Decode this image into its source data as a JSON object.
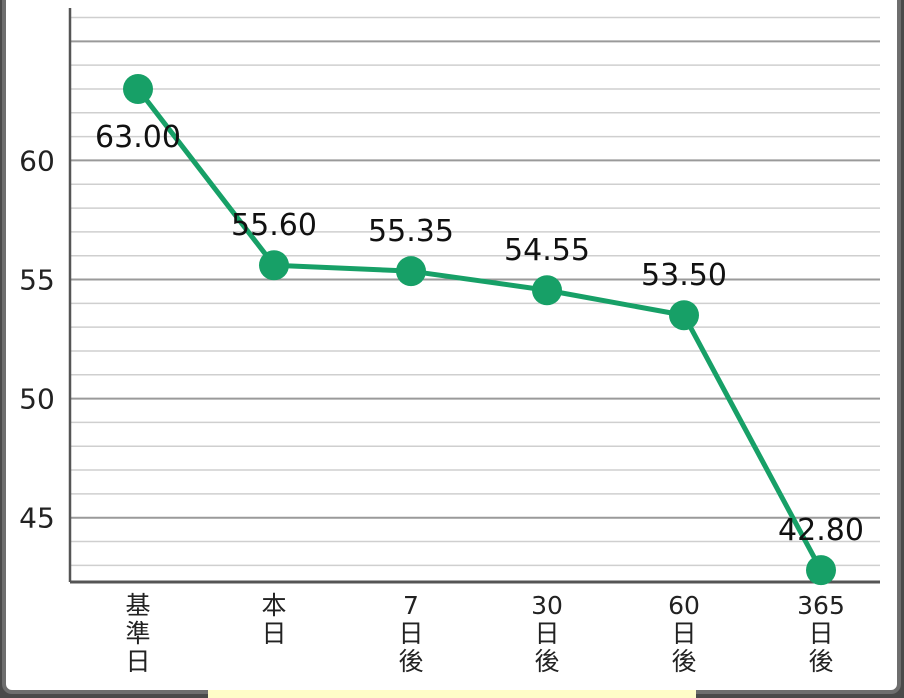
{
  "chart_data": {
    "type": "line",
    "categories": [
      "基準日",
      "本日",
      "7日後",
      "30日後",
      "60日後",
      "365日後"
    ],
    "series": [
      {
        "values": [
          63.0,
          55.6,
          55.35,
          54.55,
          53.5,
          42.8
        ]
      }
    ],
    "data_labels": [
      "63.00",
      "55.60",
      "55.35",
      "54.55",
      "53.50",
      "42.80"
    ],
    "y_ticks": [
      45,
      50,
      55,
      60
    ],
    "y_tick_labels": [
      "45",
      "50",
      "55",
      "60"
    ],
    "ylim": [
      42.3,
      66.4
    ],
    "grid": true,
    "title": "",
    "xlabel": "",
    "ylabel": "",
    "colors": {
      "line": "#17a067",
      "major_grid": "#9a9a9a",
      "minor_grid": "#cfcfcf",
      "axis": "#555555"
    }
  }
}
